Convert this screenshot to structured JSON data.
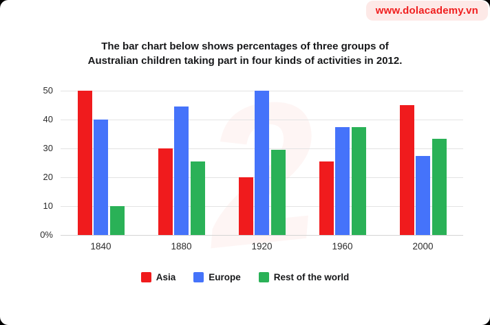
{
  "badge": {
    "text": "www.dolacademy.vn",
    "bg": "#fde9e7",
    "color": "#f01e1e"
  },
  "title": {
    "line1": "The bar chart below shows percentages of three groups of",
    "line2": "Australian children taking part in four kinds of activities in 2012."
  },
  "watermark": {
    "glyph": "2",
    "color": "rgba(235,64,61,0.055)"
  },
  "chart_data": {
    "type": "bar",
    "categories": [
      "1840",
      "1880",
      "1920",
      "1960",
      "2000"
    ],
    "series": [
      {
        "name": "Asia",
        "color": "#f01b1d",
        "values": [
          50,
          30,
          20,
          25.5,
          45
        ]
      },
      {
        "name": "Europe",
        "color": "#4573fa",
        "values": [
          40,
          44.5,
          50,
          37.3,
          27.5
        ]
      },
      {
        "name": "Rest of the world",
        "color": "#2ab157",
        "values": [
          10,
          25.5,
          29.5,
          37.3,
          33.3
        ]
      }
    ],
    "title": "The bar chart below shows percentages of three groups of Australian children taking part in four kinds of activities in 2012.",
    "xlabel": "",
    "ylabel": "",
    "ylim": [
      0,
      50
    ],
    "ytick_step": 10,
    "ytick_labels": [
      "0%",
      "10",
      "20",
      "30",
      "40",
      "50"
    ],
    "grid": true,
    "gridline_color": "#e3e3e3",
    "baseline_color": "#d4d4d4",
    "legend_position": "bottom"
  }
}
